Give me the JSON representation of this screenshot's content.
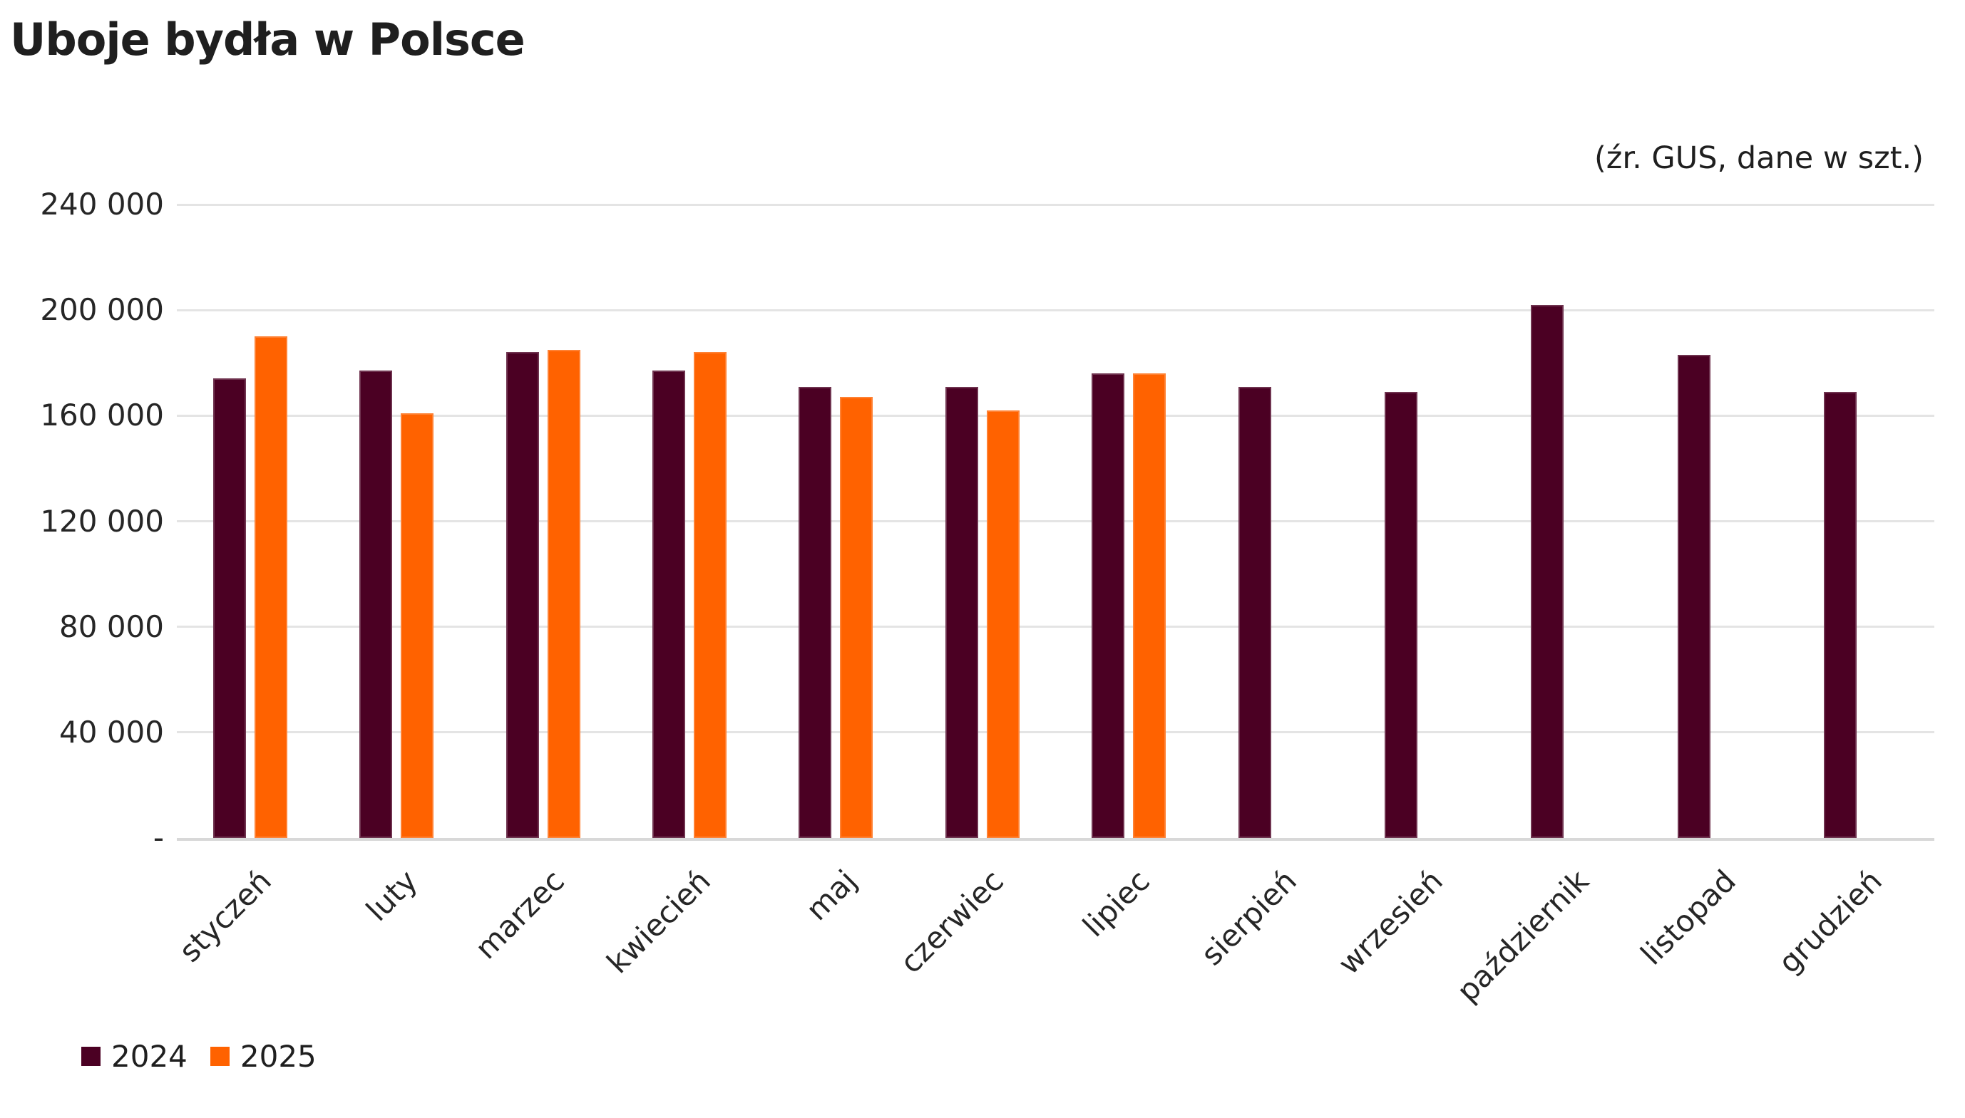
{
  "header": {
    "title": "Uboje bydła w Polsce",
    "source_note": "(źr. GUS, dane w szt.)"
  },
  "chart_data": {
    "type": "bar",
    "title": "Uboje bydła w Polsce",
    "source_note": "(źr. GUS, dane w szt.)",
    "categories": [
      "styczeń",
      "luty",
      "marzec",
      "kwiecień",
      "maj",
      "czerwiec",
      "lipiec",
      "sierpień",
      "wrzesień",
      "październik",
      "listopad",
      "grudzień"
    ],
    "series": [
      {
        "name": "2024",
        "color": "#4B0023",
        "values": [
          174000,
          177000,
          184000,
          177000,
          171000,
          171000,
          176000,
          171000,
          169000,
          202000,
          183000,
          169000
        ]
      },
      {
        "name": "2025",
        "color": "#FF6200",
        "values": [
          190000,
          161000,
          185000,
          184000,
          167000,
          162000,
          176000,
          null,
          null,
          null,
          null,
          null
        ]
      }
    ],
    "ylim": [
      0,
      240000
    ],
    "yticks": [
      {
        "value": 240000,
        "label": "240 000"
      },
      {
        "value": 200000,
        "label": "200 000"
      },
      {
        "value": 160000,
        "label": "160 000"
      },
      {
        "value": 120000,
        "label": "120 000"
      },
      {
        "value": 80000,
        "label": "80 000"
      },
      {
        "value": 40000,
        "label": "40 000"
      },
      {
        "value": 0,
        "label": "-"
      }
    ],
    "grid": "horizontal",
    "legend_position": "bottom-left"
  }
}
